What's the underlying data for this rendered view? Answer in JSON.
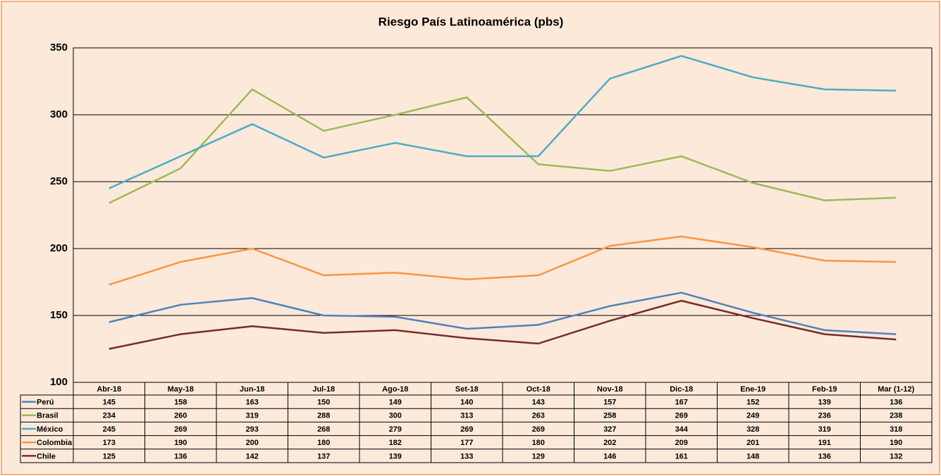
{
  "chart_data": {
    "type": "line",
    "title": "Riesgo País Latinoamérica (pbs)",
    "categories": [
      "Abr-18",
      "May-18",
      "Jun-18",
      "Jul-18",
      "Ago-18",
      "Set-18",
      "Oct-18",
      "Nov-18",
      "Dic-18",
      "Ene-19",
      "Feb-19",
      "Mar (1-12)"
    ],
    "series": [
      {
        "name": "Perú",
        "color": "#4f81bd",
        "values": [
          145,
          158,
          163,
          150,
          149,
          140,
          143,
          157,
          167,
          152,
          139,
          136
        ]
      },
      {
        "name": "Brasil",
        "color": "#9bbb59",
        "values": [
          234,
          260,
          319,
          288,
          300,
          313,
          263,
          258,
          269,
          249,
          236,
          238
        ]
      },
      {
        "name": "México",
        "color": "#4bacc6",
        "values": [
          245,
          269,
          293,
          268,
          279,
          269,
          269,
          327,
          344,
          328,
          319,
          318
        ]
      },
      {
        "name": "Colombia",
        "color": "#f79646",
        "values": [
          173,
          190,
          200,
          180,
          182,
          177,
          180,
          202,
          209,
          201,
          191,
          190
        ]
      },
      {
        "name": "Chile",
        "color": "#772c2a",
        "values": [
          125,
          136,
          142,
          137,
          139,
          133,
          129,
          146,
          161,
          148,
          136,
          132
        ]
      }
    ],
    "ylim": [
      100,
      350
    ],
    "yticks": [
      100,
      150,
      200,
      250,
      300,
      350
    ],
    "grid": true
  }
}
